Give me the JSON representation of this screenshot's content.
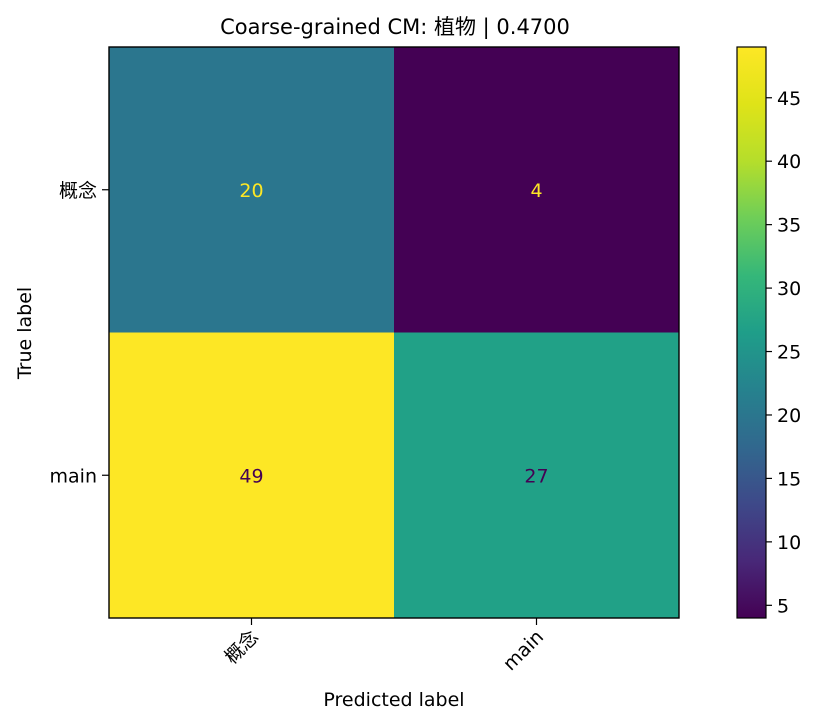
{
  "chart_data": {
    "type": "heatmap",
    "title": "Coarse-grained CM: 植物 | 0.4700",
    "xlabel": "Predicted label",
    "ylabel": "True label",
    "x_categories": [
      "概念",
      "main"
    ],
    "y_categories": [
      "概念",
      "main"
    ],
    "matrix": [
      [
        20,
        4
      ],
      [
        49,
        27
      ]
    ],
    "colormap": "viridis",
    "colorbar": {
      "min": 4,
      "max": 49,
      "ticks": [
        5,
        10,
        15,
        20,
        25,
        30,
        35,
        40,
        45
      ]
    },
    "cell_text_colors": {
      "light": "#fde725",
      "dark": "#440154"
    },
    "grid": false
  }
}
